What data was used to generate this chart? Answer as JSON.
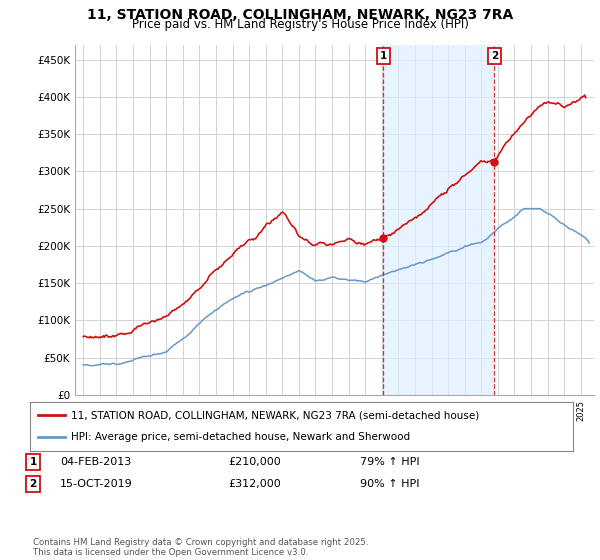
{
  "title": "11, STATION ROAD, COLLINGHAM, NEWARK, NG23 7RA",
  "subtitle": "Price paid vs. HM Land Registry's House Price Index (HPI)",
  "title_fontsize": 10,
  "subtitle_fontsize": 8.5,
  "ylabel_ticks": [
    "£0",
    "£50K",
    "£100K",
    "£150K",
    "£200K",
    "£250K",
    "£300K",
    "£350K",
    "£400K",
    "£450K"
  ],
  "ytick_values": [
    0,
    50000,
    100000,
    150000,
    200000,
    250000,
    300000,
    350000,
    400000,
    450000
  ],
  "ylim": [
    0,
    470000
  ],
  "xlim_start": 1994.5,
  "xlim_end": 2025.8,
  "hpi_color": "#6699cc",
  "price_color": "#cc1111",
  "shade_color": "#ddeeff",
  "marker1_date": 2013.09,
  "marker2_date": 2019.79,
  "marker1_price": 210000,
  "marker2_price": 312000,
  "legend1": "11, STATION ROAD, COLLINGHAM, NEWARK, NG23 7RA (semi-detached house)",
  "legend2": "HPI: Average price, semi-detached house, Newark and Sherwood",
  "footer": "Contains HM Land Registry data © Crown copyright and database right 2025.\nThis data is licensed under the Open Government Licence v3.0.",
  "bg_color": "#ffffff",
  "plot_bg": "#ffffff",
  "grid_color": "#cccccc"
}
